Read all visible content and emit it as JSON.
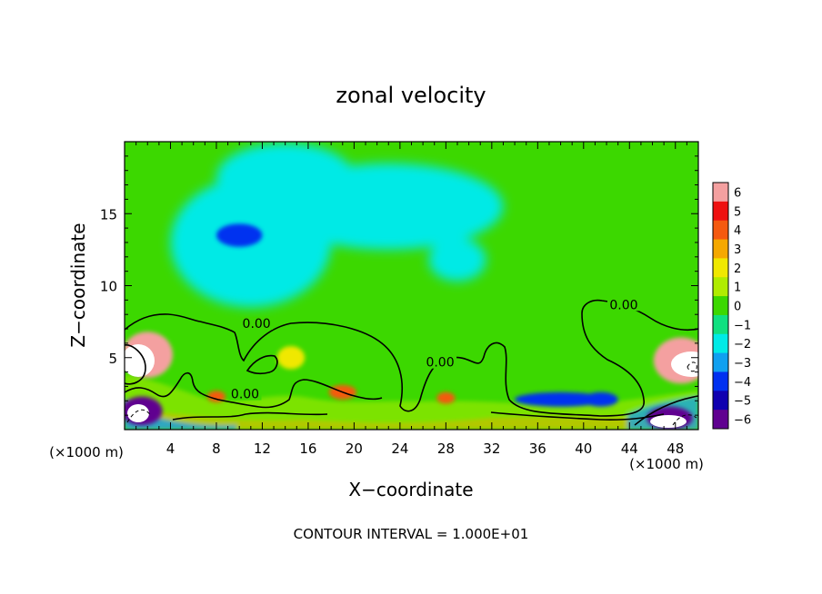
{
  "chart_data": {
    "type": "heatmap",
    "title": "zonal velocity",
    "xlabel": "X−coordinate",
    "ylabel": "Z−coordinate",
    "x_unit_left": "(×1000 m)",
    "x_unit_right": "(×1000 m)",
    "footer": "CONTOUR INTERVAL = 1.000E+01",
    "xlim": [
      0,
      50
    ],
    "ylim": [
      0,
      20
    ],
    "x_ticks": [
      4,
      8,
      12,
      16,
      20,
      24,
      28,
      32,
      36,
      40,
      44,
      48
    ],
    "x_tick_labels": [
      "4",
      "8",
      "12",
      "16",
      "20",
      "24",
      "28",
      "32",
      "36",
      "40",
      "44",
      "48"
    ],
    "y_ticks": [
      5,
      10,
      15
    ],
    "y_tick_labels": [
      "5",
      "10",
      "15"
    ],
    "colorbar": {
      "levels": [
        6,
        5,
        4,
        3,
        2,
        1,
        0,
        -1,
        -2,
        -3,
        -4,
        -5,
        -6
      ],
      "labels": [
        "6",
        "5",
        "4",
        "3",
        "2",
        "1",
        "0",
        "−1",
        "−2",
        "−3",
        "−4",
        "−5",
        "−6"
      ],
      "colors": [
        "#f4a0a0",
        "#ee1010",
        "#f55a10",
        "#f5a800",
        "#f0e800",
        "#b0ec00",
        "#3cd800",
        "#10e080",
        "#00eae6",
        "#10a0f0",
        "#0030f0",
        "#1000b0",
        "#600090"
      ]
    },
    "contour_label": "0.00",
    "contour_label_positions": [
      [
        11.5,
        7.2
      ],
      [
        27.5,
        4.5
      ],
      [
        10.5,
        2.3
      ],
      [
        43.5,
        8.5
      ]
    ],
    "background_level": 0,
    "features": [
      {
        "x": 14.5,
        "y": 17.5,
        "rx": 3.5,
        "ry": 1.3,
        "level": -3
      },
      {
        "x": 10,
        "y": 13.3,
        "rx": 4.5,
        "ry": 2.0,
        "level": -3
      },
      {
        "x": 10,
        "y": 13.5,
        "rx": 2.0,
        "ry": 0.8,
        "level": -4
      },
      {
        "x": 14,
        "y": 17.5,
        "rx": 6,
        "ry": 2.4,
        "level": -2
      },
      {
        "x": 11,
        "y": 13,
        "rx": 7,
        "ry": 4.5,
        "level": -2
      },
      {
        "x": 23,
        "y": 15.5,
        "rx": 10,
        "ry": 3,
        "level": -2
      },
      {
        "x": 29,
        "y": 11.8,
        "rx": 2.5,
        "ry": 1.5,
        "level": -2
      },
      {
        "x": 2,
        "y": 5.2,
        "rx": 2.2,
        "ry": 1.6,
        "level": 6
      },
      {
        "x": 48.5,
        "y": 4.8,
        "rx": 2.4,
        "ry": 1.6,
        "level": 6
      },
      {
        "x": 1.5,
        "y": 1.3,
        "rx": 1.8,
        "ry": 1.0,
        "level": -6
      },
      {
        "x": 47.5,
        "y": 0.8,
        "rx": 2.0,
        "ry": 0.8,
        "level": -6
      },
      {
        "x": 8,
        "y": 2.3,
        "rx": 0.8,
        "ry": 0.4,
        "level": 4
      },
      {
        "x": 19,
        "y": 2.6,
        "rx": 1.2,
        "ry": 0.5,
        "level": 4
      },
      {
        "x": 28,
        "y": 2.2,
        "rx": 0.8,
        "ry": 0.4,
        "level": 4
      },
      {
        "x": 14.5,
        "y": 5.0,
        "rx": 1.2,
        "ry": 0.8,
        "level": 2
      },
      {
        "x": 38,
        "y": 2.1,
        "rx": 4,
        "ry": 0.5,
        "level": -4
      },
      {
        "x": 41.5,
        "y": 2.1,
        "rx": 1.5,
        "ry": 0.5,
        "level": -4
      }
    ]
  }
}
